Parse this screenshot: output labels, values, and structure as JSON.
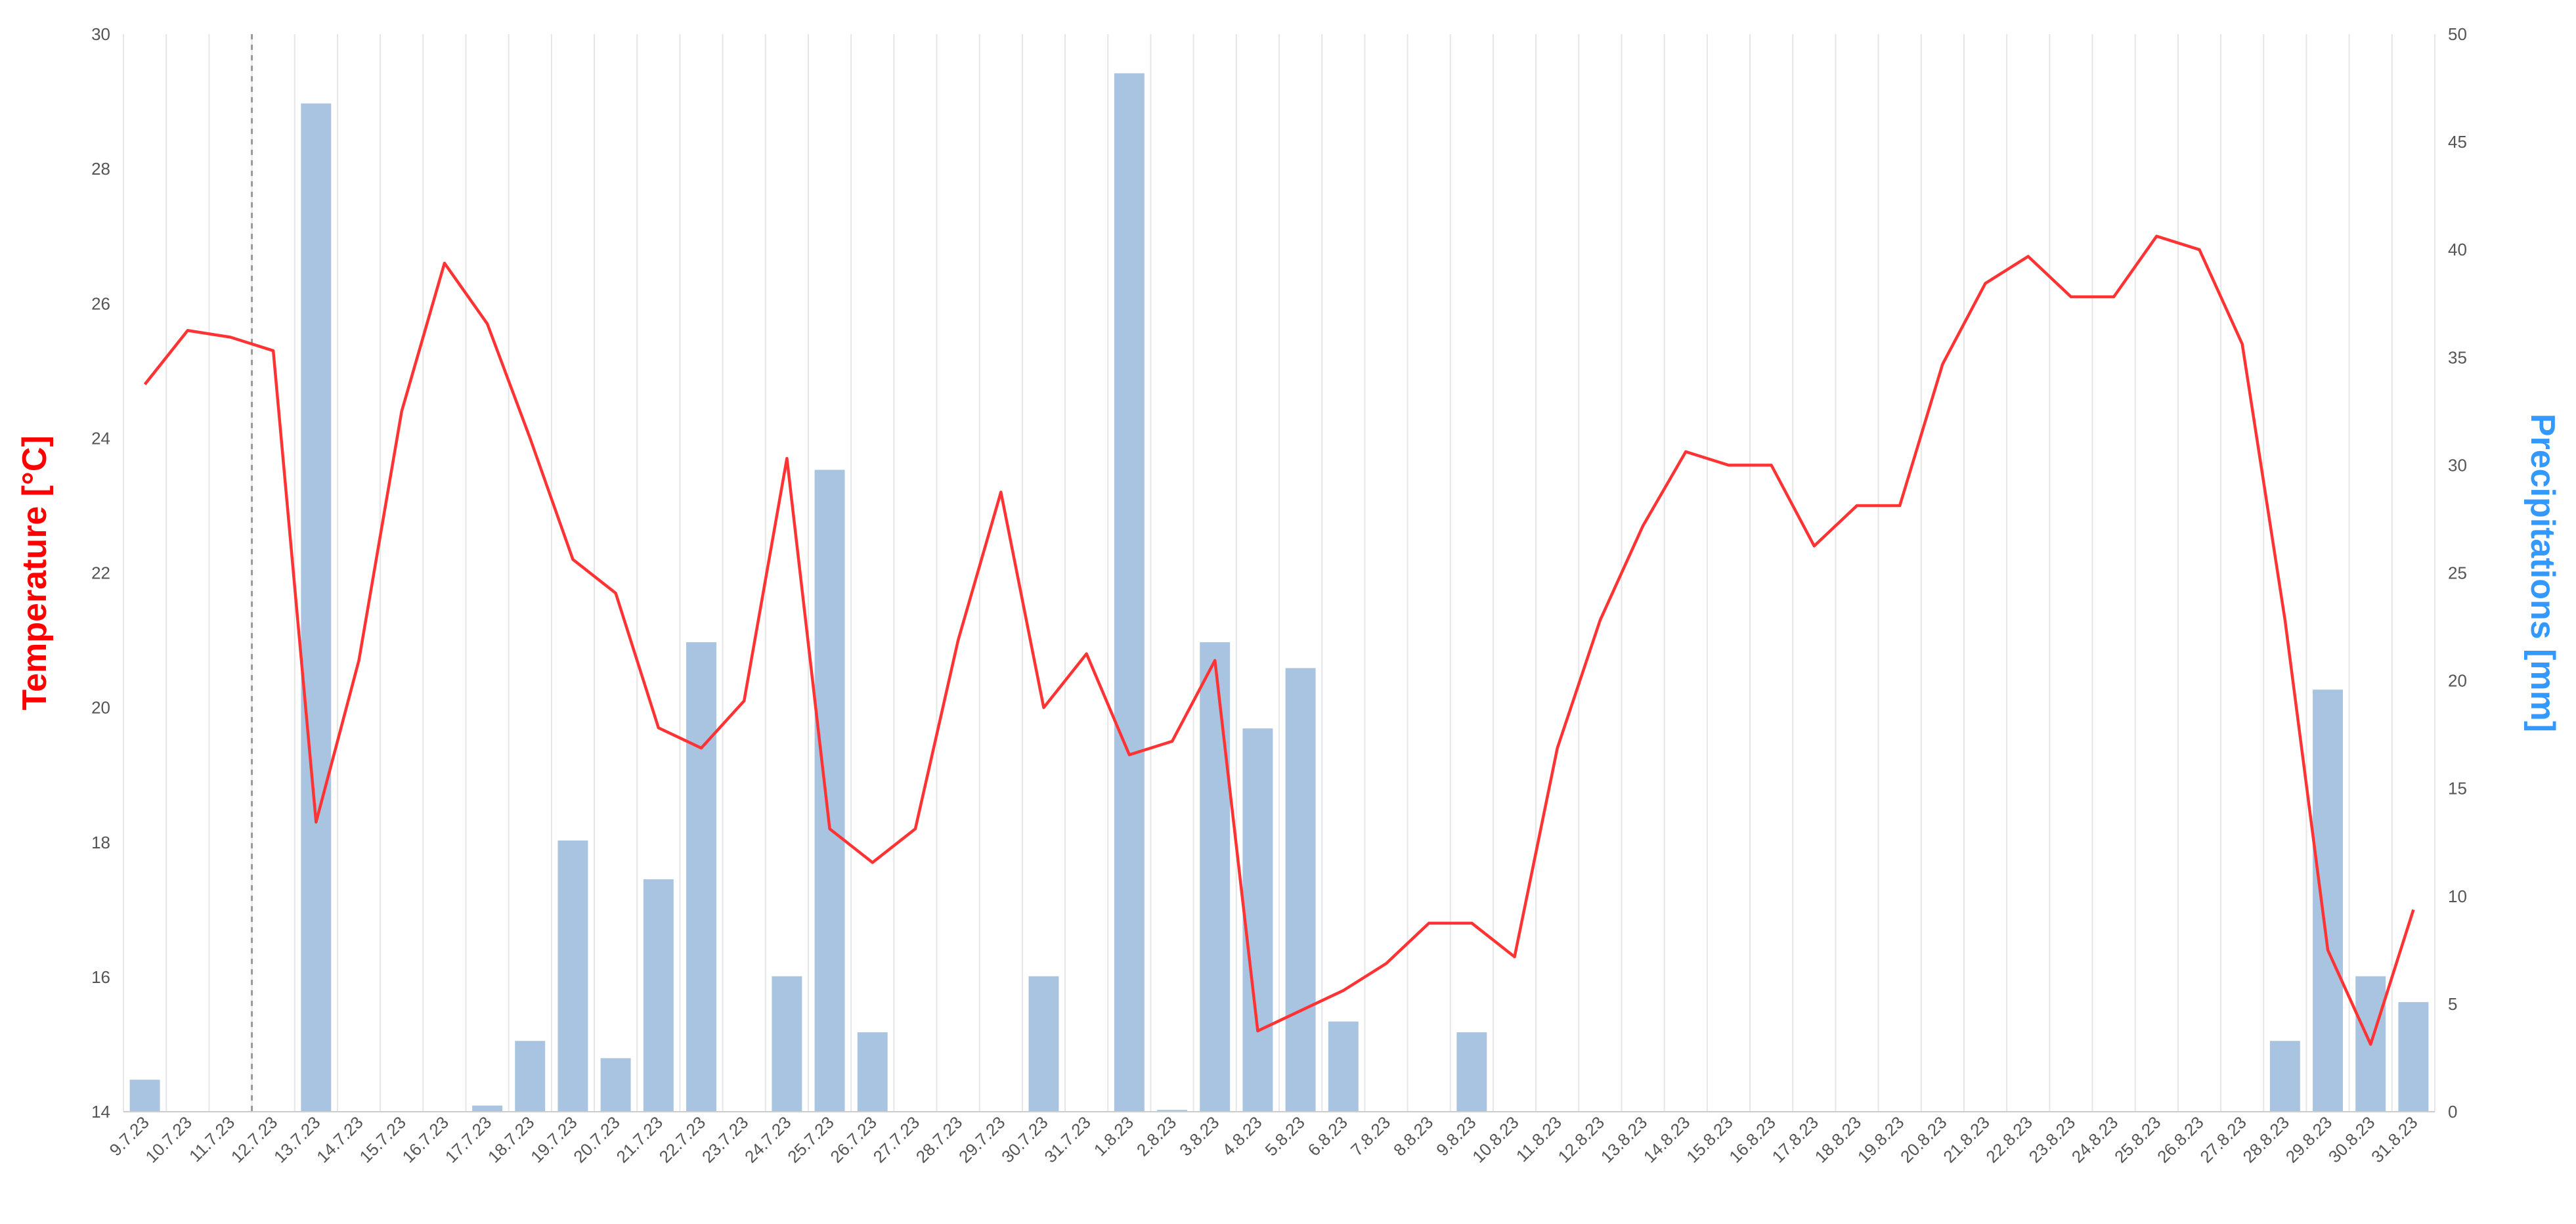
{
  "chart_data": {
    "type": "bar+line",
    "categories": [
      "9.7.23",
      "10.7.23",
      "11.7.23",
      "12.7.23",
      "13.7.23",
      "14.7.23",
      "15.7.23",
      "16.7.23",
      "17.7.23",
      "18.7.23",
      "19.7.23",
      "20.7.23",
      "21.7.23",
      "22.7.23",
      "23.7.23",
      "24.7.23",
      "25.7.23",
      "26.7.23",
      "27.7.23",
      "28.7.23",
      "29.7.23",
      "30.7.23",
      "31.7.23",
      "1.8.23",
      "2.8.23",
      "3.8.23",
      "4.8.23",
      "5.8.23",
      "6.8.23",
      "7.8.23",
      "8.8.23",
      "9.8.23",
      "10.8.23",
      "11.8.23",
      "12.8.23",
      "13.8.23",
      "14.8.23",
      "15.8.23",
      "16.8.23",
      "17.8.23",
      "18.8.23",
      "19.8.23",
      "20.8.23",
      "21.8.23",
      "22.8.23",
      "23.8.23",
      "24.8.23",
      "25.8.23",
      "26.8.23",
      "27.8.23",
      "28.8.23",
      "29.8.23",
      "30.8.23",
      "31.8.23"
    ],
    "series": [
      {
        "axis": "left",
        "type": "line",
        "color": "#ff3333",
        "values": [
          24.8,
          25.6,
          25.5,
          25.3,
          18.3,
          20.7,
          24.4,
          26.6,
          25.7,
          24.0,
          22.2,
          21.7,
          19.7,
          19.4,
          20.1,
          23.7,
          18.2,
          17.7,
          18.2,
          21.0,
          23.2,
          20.0,
          20.8,
          19.3,
          19.5,
          20.7,
          15.2,
          15.5,
          15.8,
          16.2,
          16.8,
          16.8,
          16.3,
          19.4,
          21.3,
          22.7,
          23.8,
          23.6,
          23.6,
          22.4,
          23.0,
          23.0,
          25.1,
          26.3,
          26.7,
          26.1,
          26.1,
          27.0,
          26.8,
          25.4,
          21.3,
          16.4,
          15.0,
          17.0
        ]
      },
      {
        "axis": "right",
        "type": "bar",
        "color": "#a8c4e0",
        "values": [
          1.5,
          0,
          0,
          0,
          46.8,
          0,
          0,
          0,
          0.3,
          3.3,
          12.6,
          2.5,
          10.8,
          21.8,
          0,
          6.3,
          29.8,
          3.7,
          0,
          0,
          0,
          6.3,
          0,
          48.2,
          0.1,
          21.8,
          17.8,
          20.6,
          4.2,
          0,
          0,
          3.7,
          0,
          0,
          0,
          0,
          0,
          0,
          0,
          0,
          0,
          0,
          0,
          0,
          0,
          0,
          0,
          0,
          0,
          0,
          3.3,
          19.6,
          6.3,
          5.1
        ]
      }
    ],
    "y_left": {
      "label": "Temperature [°C]",
      "color": "#ff0000",
      "min": 14,
      "max": 30,
      "ticks": [
        14,
        16,
        18,
        20,
        22,
        24,
        26,
        28,
        30
      ]
    },
    "y_right": {
      "label": "Precipitations [mm]",
      "color": "#3399ff",
      "min": 0,
      "max": 50,
      "ticks": [
        0,
        5,
        10,
        15,
        20,
        25,
        30,
        35,
        40,
        45,
        50
      ]
    },
    "vertical_marker_index": 2.5,
    "grid": true
  }
}
